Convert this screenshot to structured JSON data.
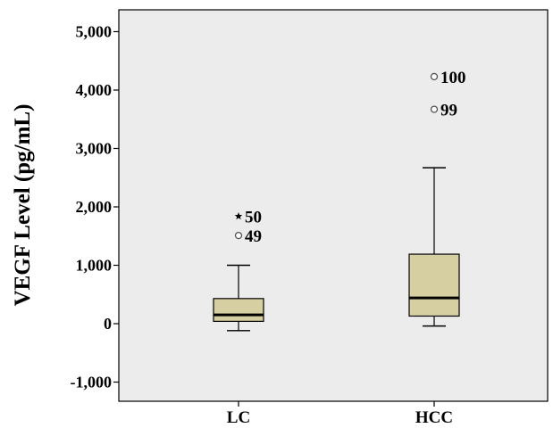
{
  "chart_data": {
    "type": "box",
    "ylabel": "VEGF Level (pg/mL)",
    "ylim": [
      -1200,
      5300
    ],
    "yticks": [
      -1000,
      0,
      1000,
      2000,
      3000,
      4000,
      5000
    ],
    "ytick_labels": [
      "-1,000",
      "0",
      "1,000",
      "2,000",
      "3,000",
      "4,000",
      "5,000"
    ],
    "categories": [
      "LC",
      "HCC"
    ],
    "boxes": [
      {
        "category": "LC",
        "whisker_low": -120,
        "q1": 40,
        "median": 150,
        "q3": 430,
        "whisker_high": 1000
      },
      {
        "category": "HCC",
        "whisker_low": -40,
        "q1": 130,
        "median": 440,
        "q3": 1190,
        "whisker_high": 2670
      }
    ],
    "outliers": [
      {
        "category": "LC",
        "value": 1840,
        "label": "50",
        "marker": "star"
      },
      {
        "category": "LC",
        "value": 1510,
        "label": "49",
        "marker": "circle"
      },
      {
        "category": "HCC",
        "value": 4230,
        "label": "100",
        "marker": "circle"
      },
      {
        "category": "HCC",
        "value": 3670,
        "label": "99",
        "marker": "circle"
      }
    ],
    "colors": {
      "plot_background": "#ececec",
      "box_fill": "#d6cfa1",
      "box_stroke": "#000000"
    }
  }
}
